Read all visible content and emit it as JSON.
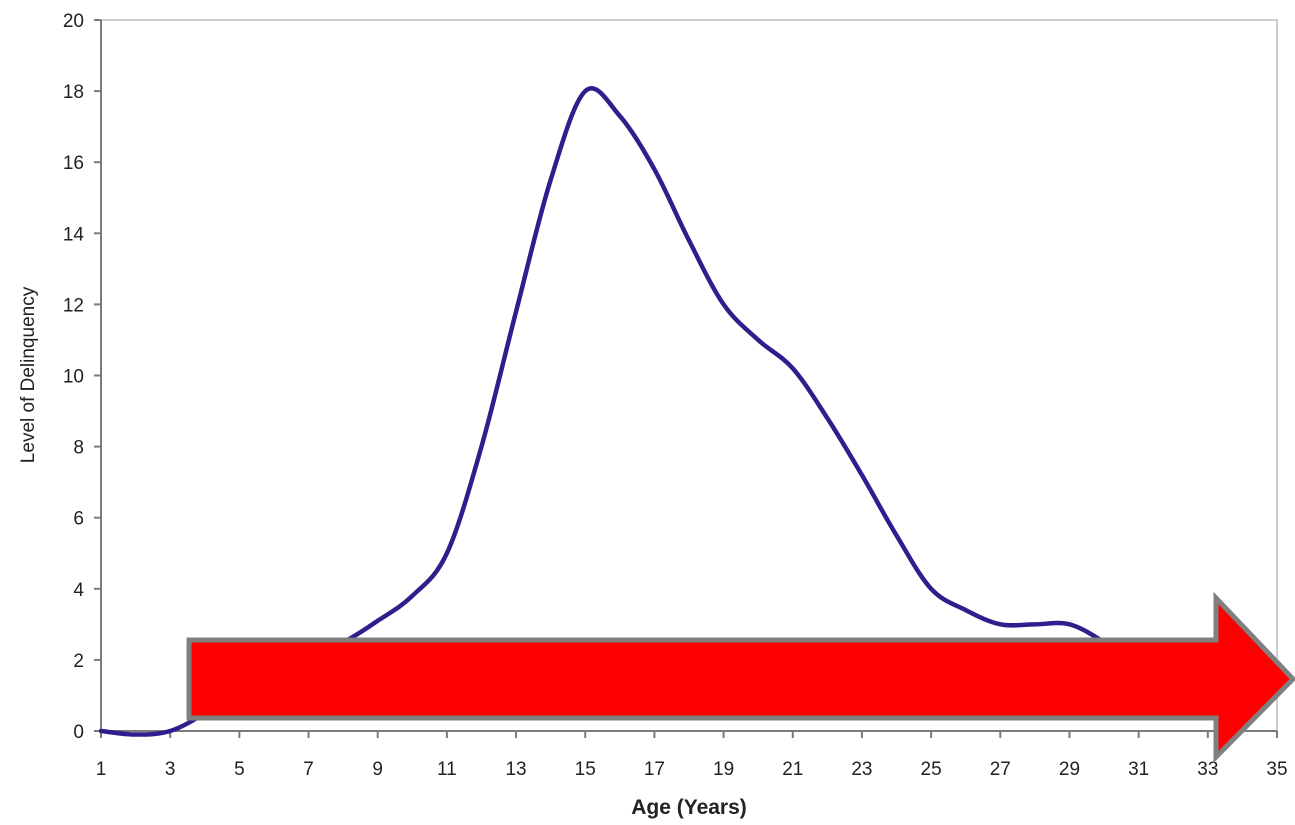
{
  "chart_data": {
    "type": "line",
    "title": "",
    "xlabel": "Age (Years)",
    "ylabel": "Level of Delinquency",
    "xlim": [
      1,
      35
    ],
    "ylim": [
      0,
      20
    ],
    "x_ticks": [
      1,
      3,
      5,
      7,
      9,
      11,
      13,
      15,
      17,
      19,
      21,
      23,
      25,
      27,
      29,
      31,
      33,
      35
    ],
    "y_ticks": [
      0,
      2,
      4,
      6,
      8,
      10,
      12,
      14,
      16,
      18,
      20
    ],
    "grid": false,
    "legend": "none",
    "series": [
      {
        "color": "#2e1f8c",
        "x": [
          1,
          2,
          3,
          4,
          5,
          6,
          7,
          8,
          9,
          10,
          11,
          12,
          13,
          14,
          15,
          16,
          17,
          18,
          19,
          20,
          21,
          22,
          23,
          24,
          25,
          26,
          27,
          28,
          29,
          30,
          31,
          32
        ],
        "y": [
          0,
          -0.1,
          0,
          0.5,
          1.2,
          1.8,
          2.2,
          2.5,
          3.1,
          3.8,
          5,
          8,
          11.8,
          15.5,
          18,
          17.3,
          15.8,
          13.8,
          12,
          11,
          10.2,
          8.8,
          7.2,
          5.5,
          4,
          3.4,
          3,
          3,
          3,
          2.5,
          1.8,
          1.2
        ]
      }
    ],
    "annotation": {
      "shape": "arrow-right",
      "fill": "#ff0000",
      "stroke": "#808080"
    }
  }
}
